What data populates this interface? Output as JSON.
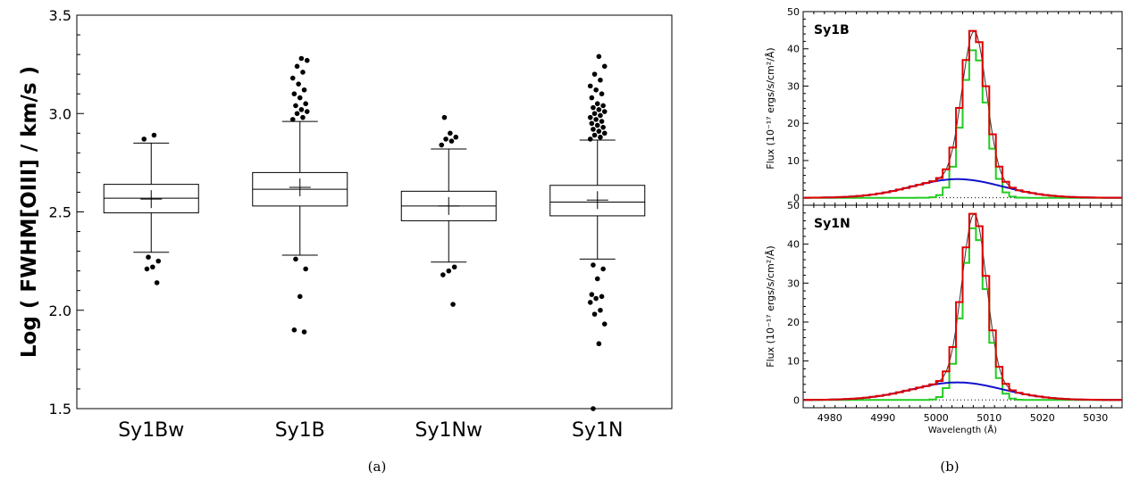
{
  "captions": {
    "a": "(a)",
    "b": "(b)"
  },
  "chart_data": [
    {
      "type": "box",
      "ylabel": "Log ( FWHM[OIII] / km/s )",
      "ylim": [
        1.5,
        3.5
      ],
      "yticks": [
        "1.5",
        "2.0",
        "2.5",
        "3.0",
        "3.5"
      ],
      "categories": [
        "Sy1Bw",
        "Sy1B",
        "Sy1Nw",
        "Sy1N"
      ],
      "boxes": [
        {
          "q1": 2.495,
          "median": 2.57,
          "mean": 2.565,
          "q3": 2.64,
          "whisker_low": 2.295,
          "whisker_high": 2.85,
          "outliers": [
            2.87,
            2.89,
            2.27,
            2.25,
            2.22,
            2.21,
            2.14
          ]
        },
        {
          "q1": 2.53,
          "median": 2.615,
          "mean": 2.625,
          "q3": 2.7,
          "whisker_low": 2.28,
          "whisker_high": 2.96,
          "outliers": [
            2.97,
            2.98,
            3.0,
            3.01,
            3.02,
            3.04,
            3.05,
            3.08,
            3.1,
            3.12,
            3.15,
            3.18,
            3.21,
            3.24,
            3.27,
            3.28,
            2.26,
            2.21,
            2.07,
            1.9,
            1.89
          ]
        },
        {
          "q1": 2.455,
          "median": 2.53,
          "mean": 2.53,
          "q3": 2.605,
          "whisker_low": 2.245,
          "whisker_high": 2.82,
          "outliers": [
            2.84,
            2.86,
            2.87,
            2.88,
            2.9,
            2.98,
            2.22,
            2.2,
            2.18,
            2.03
          ]
        },
        {
          "q1": 2.48,
          "median": 2.55,
          "mean": 2.56,
          "q3": 2.635,
          "whisker_low": 2.26,
          "whisker_high": 2.865,
          "outliers": [
            2.87,
            2.88,
            2.89,
            2.9,
            2.91,
            2.92,
            2.93,
            2.94,
            2.95,
            2.96,
            2.97,
            2.98,
            2.99,
            3.0,
            3.01,
            3.02,
            3.03,
            3.04,
            3.05,
            3.08,
            3.1,
            3.12,
            3.14,
            3.17,
            3.2,
            3.24,
            3.29,
            2.23,
            2.21,
            2.16,
            2.08,
            2.07,
            2.06,
            2.04,
            2.0,
            1.98,
            1.93,
            1.83,
            1.5
          ]
        }
      ]
    },
    {
      "type": "line",
      "panels": [
        {
          "label": "Sy1B",
          "ylabel": "Flux (10⁻¹⁷ ergs/s/cm²/Å)",
          "xlim": [
            4975,
            5035
          ],
          "ylim": [
            -2,
            50
          ],
          "yticks": [
            "0",
            "10",
            "20",
            "30",
            "40",
            "50"
          ],
          "peak_total": 45.5,
          "peak_narrow": 40.0,
          "peak_broad": 5.0,
          "center": 5006.8
        },
        {
          "label": "Sy1N",
          "ylabel": "Flux (10⁻¹⁷ ergs/s/cm²/Å)",
          "xlim": [
            4975,
            5035
          ],
          "ylim": [
            -2,
            50
          ],
          "yticks": [
            "0",
            "10",
            "20",
            "30",
            "40",
            "50"
          ],
          "peak_total": 48.5,
          "peak_narrow": 44.5,
          "peak_broad": 4.5,
          "center": 5006.8
        }
      ],
      "xlabel": "Wavelength (Å)",
      "xticks": [
        "4980",
        "4990",
        "5000",
        "5010",
        "5020",
        "5030"
      ],
      "series_colors": {
        "total": "#e00000",
        "narrow": "#22cc22",
        "broad": "#1010cc",
        "data": "#333333"
      }
    }
  ]
}
